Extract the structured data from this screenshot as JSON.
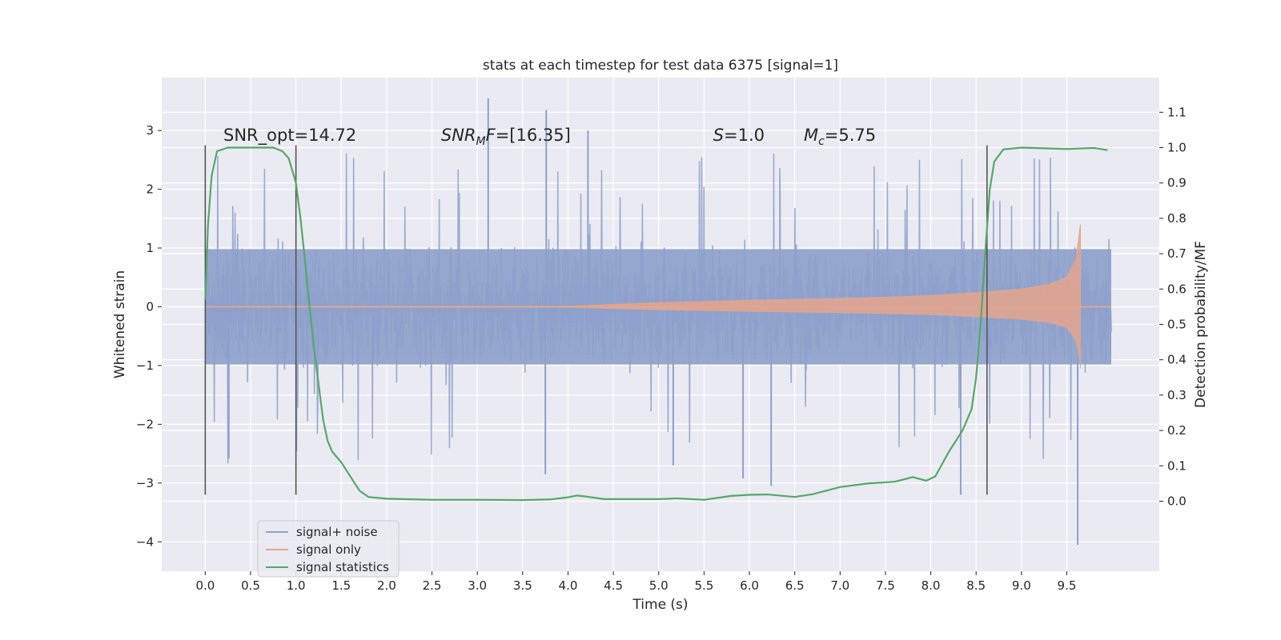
{
  "chart_data": {
    "type": "line",
    "title": "stats at each timestep for test data 6375 [signal=1]",
    "xlabel": "Time (s)",
    "ylabel": "Whitened strain",
    "y2label": "Detection probability/MF",
    "xlim": [
      -0.48,
      10.52
    ],
    "ylim": [
      -4.5,
      3.9
    ],
    "y2lim": [
      -0.198,
      1.198
    ],
    "xticks": [
      0.0,
      0.5,
      1.0,
      1.5,
      2.0,
      2.5,
      3.0,
      3.5,
      4.0,
      4.5,
      5.0,
      5.5,
      6.0,
      6.5,
      7.0,
      7.5,
      8.0,
      8.5,
      9.0,
      9.5
    ],
    "xtick_labels": [
      "0.0",
      "0.5",
      "1.0",
      "1.5",
      "2.0",
      "2.5",
      "3.0",
      "3.5",
      "4.0",
      "4.5",
      "5.0",
      "5.5",
      "6.0",
      "6.5",
      "7.0",
      "7.5",
      "8.0",
      "8.5",
      "9.0",
      "9.5"
    ],
    "yticks": [
      -4,
      -3,
      -2,
      -1,
      0,
      1,
      2,
      3
    ],
    "ytick_labels": [
      "−4",
      "−3",
      "−2",
      "−1",
      "0",
      "1",
      "2",
      "3"
    ],
    "y2ticks": [
      0.0,
      0.1,
      0.2,
      0.3,
      0.4,
      0.5,
      0.6,
      0.7,
      0.8,
      0.9,
      1.0,
      1.1
    ],
    "y2tick_labels": [
      "0.0",
      "0.1",
      "0.2",
      "0.3",
      "0.4",
      "0.5",
      "0.6",
      "0.7",
      "0.8",
      "0.9",
      "1.0",
      "1.1"
    ],
    "grid": true,
    "legend_position": "lower-left",
    "annotations": [
      {
        "parts": [
          {
            "text": "SNR_opt=14.72",
            "italic": false
          }
        ],
        "x": 0.2,
        "y": 2.8
      },
      {
        "parts": [
          {
            "text": "SNR",
            "italic": true
          },
          {
            "text": "M",
            "italic": true,
            "sub": true
          },
          {
            "text": "F",
            "italic": true
          },
          {
            "text": "=[16.35]",
            "italic": false
          }
        ],
        "x": 2.6,
        "y": 2.8
      },
      {
        "parts": [
          {
            "text": "S",
            "italic": true
          },
          {
            "text": "=1.0",
            "italic": false
          }
        ],
        "x": 5.6,
        "y": 2.8
      },
      {
        "parts": [
          {
            "text": "M",
            "italic": true
          },
          {
            "text": "c",
            "italic": true,
            "sub": true
          },
          {
            "text": "=5.75",
            "italic": false
          }
        ],
        "x": 6.6,
        "y": 2.8
      }
    ],
    "vlines": [
      {
        "x": 0.0,
        "ymin": -3.2,
        "ymax": 2.75
      },
      {
        "x": 1.0,
        "ymin": -3.2,
        "ymax": 2.75
      },
      {
        "x": 8.62,
        "ymin": -3.2,
        "ymax": 2.75
      }
    ],
    "series": [
      {
        "name": "signal+ noise",
        "color": "#8da0cb",
        "kind": "noise",
        "x_range": [
          0.0,
          9.99
        ],
        "typical_range": [
          -1.2,
          1.2
        ],
        "extreme_range": [
          -4.05,
          3.55
        ]
      },
      {
        "name": "signal only",
        "color": "#e5a58c",
        "kind": "chirp",
        "merger_time": 9.65,
        "envelope": [
          {
            "x": 0.0,
            "amp": 0.003
          },
          {
            "x": 3.0,
            "amp": 0.006
          },
          {
            "x": 4.0,
            "amp": 0.01
          },
          {
            "x": 5.0,
            "amp": 0.07
          },
          {
            "x": 6.0,
            "amp": 0.11
          },
          {
            "x": 7.0,
            "amp": 0.14
          },
          {
            "x": 8.0,
            "amp": 0.19
          },
          {
            "x": 8.5,
            "amp": 0.24
          },
          {
            "x": 9.0,
            "amp": 0.3
          },
          {
            "x": 9.3,
            "amp": 0.38
          },
          {
            "x": 9.5,
            "amp": 0.5
          },
          {
            "x": 9.6,
            "amp": 0.8
          },
          {
            "x": 9.65,
            "amp": 1.4
          }
        ]
      },
      {
        "name": "signal statistics",
        "color": "#55a868",
        "axis": "right",
        "points": [
          [
            0.0,
            0.57
          ],
          [
            0.03,
            0.78
          ],
          [
            0.07,
            0.92
          ],
          [
            0.13,
            0.99
          ],
          [
            0.25,
            1.0
          ],
          [
            0.5,
            1.0
          ],
          [
            0.75,
            1.0
          ],
          [
            0.85,
            0.99
          ],
          [
            0.92,
            0.97
          ],
          [
            1.0,
            0.9
          ],
          [
            1.05,
            0.8
          ],
          [
            1.1,
            0.68
          ],
          [
            1.15,
            0.55
          ],
          [
            1.2,
            0.43
          ],
          [
            1.25,
            0.33
          ],
          [
            1.3,
            0.23
          ],
          [
            1.35,
            0.17
          ],
          [
            1.4,
            0.14
          ],
          [
            1.5,
            0.11
          ],
          [
            1.6,
            0.07
          ],
          [
            1.7,
            0.03
          ],
          [
            1.8,
            0.012
          ],
          [
            2.0,
            0.007
          ],
          [
            2.5,
            0.004
          ],
          [
            3.0,
            0.004
          ],
          [
            3.5,
            0.003
          ],
          [
            3.8,
            0.005
          ],
          [
            4.0,
            0.011
          ],
          [
            4.1,
            0.016
          ],
          [
            4.2,
            0.013
          ],
          [
            4.4,
            0.006
          ],
          [
            5.0,
            0.006
          ],
          [
            5.2,
            0.008
          ],
          [
            5.5,
            0.004
          ],
          [
            5.8,
            0.015
          ],
          [
            6.0,
            0.018
          ],
          [
            6.2,
            0.019
          ],
          [
            6.5,
            0.012
          ],
          [
            6.7,
            0.02
          ],
          [
            7.0,
            0.04
          ],
          [
            7.3,
            0.05
          ],
          [
            7.6,
            0.055
          ],
          [
            7.8,
            0.068
          ],
          [
            7.95,
            0.058
          ],
          [
            8.05,
            0.07
          ],
          [
            8.2,
            0.14
          ],
          [
            8.35,
            0.2
          ],
          [
            8.45,
            0.26
          ],
          [
            8.5,
            0.35
          ],
          [
            8.55,
            0.5
          ],
          [
            8.6,
            0.7
          ],
          [
            8.65,
            0.88
          ],
          [
            8.7,
            0.96
          ],
          [
            8.8,
            0.995
          ],
          [
            9.0,
            1.0
          ],
          [
            9.5,
            0.996
          ],
          [
            9.8,
            0.999
          ],
          [
            9.95,
            0.993
          ]
        ]
      }
    ]
  }
}
